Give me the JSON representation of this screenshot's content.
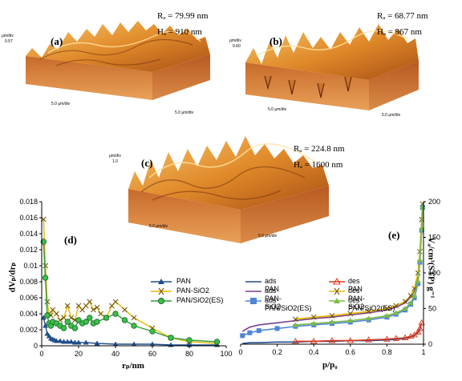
{
  "afm": {
    "a": {
      "label": "(a)",
      "ra": "Rₐ = 79.99 nm",
      "ha": "Hₐ = 910 nm",
      "zunit": "μm/div",
      "zval": "0.57",
      "xaxis": "5.0 μm/div",
      "yaxis": "5.0 μm/div"
    },
    "b": {
      "label": "(b)",
      "ra": "Rₐ = 68.77 nm",
      "ha": "Hₐ = 967 nm",
      "zunit": "μm/div",
      "zval": "0.60",
      "xaxis": "5.0 μm/div",
      "yaxis": "5.0 μm/div"
    },
    "c": {
      "label": "(c)",
      "ra": "Rₐ = 224.8 nm",
      "ha": "Hₐ = 1600 nm",
      "zunit": "μm/div",
      "zval": "1.0",
      "xaxis": "5.0 μm/div",
      "yaxis": "5.0 μm/div"
    }
  },
  "colors": {
    "pan": "#1f4e8c",
    "pansio2": "#e8b800",
    "panes": "#2e9b3a",
    "des_pan": "#d9361c",
    "ads_pansio2": "#7a3f8c",
    "ads_panes": "#4f86d6",
    "des_panes": "#7dbb45",
    "afm_light": "#f2b24a",
    "afm_dark": "#8a3d10"
  },
  "chart_data": [
    {
      "type": "line",
      "panel": "(d)",
      "ylabel": "dVₚ/drₚ",
      "xlabel": "rₚ/nm",
      "xlim": [
        0,
        100
      ],
      "ylim": [
        0,
        0.018
      ],
      "xticks": [
        "0",
        "20",
        "40",
        "60",
        "80",
        "100"
      ],
      "yticks": [
        "0",
        "0.002",
        "0.004",
        "0.006",
        "0.008",
        "0.01",
        "0.012",
        "0.014",
        "0.016",
        "0.018"
      ],
      "legend_position": "center-right",
      "series": [
        {
          "name": "PAN",
          "marker": "triangle",
          "x": [
            1,
            2,
            3,
            4,
            5,
            6,
            7,
            8,
            10,
            12,
            14,
            16,
            18,
            20,
            24,
            30,
            40,
            50,
            60,
            70,
            80,
            95
          ],
          "values": [
            0.0035,
            0.0025,
            0.0015,
            0.0012,
            0.0009,
            0.0008,
            0.0007,
            0.0006,
            0.0006,
            0.0005,
            0.0005,
            0.0005,
            0.0004,
            0.0004,
            0.0004,
            0.0003,
            0.0002,
            0.0002,
            0.0002,
            0.0001,
            0.0001,
            0.0001
          ]
        },
        {
          "name": "PAN-SiO2",
          "marker": "x",
          "x": [
            1,
            2,
            3,
            4,
            5,
            6,
            8,
            10,
            12,
            14,
            16,
            18,
            20,
            22,
            24,
            26,
            28,
            30,
            32,
            35,
            38,
            40,
            45,
            50,
            60,
            70,
            80,
            95
          ],
          "values": [
            0.0158,
            0.01,
            0.0055,
            0.004,
            0.0038,
            0.0045,
            0.004,
            0.0032,
            0.0035,
            0.005,
            0.0035,
            0.0032,
            0.005,
            0.0045,
            0.005,
            0.0055,
            0.0045,
            0.0048,
            0.004,
            0.0035,
            0.005,
            0.0055,
            0.0045,
            0.0035,
            0.0022,
            0.001,
            0.0005,
            0.0003
          ]
        },
        {
          "name": "PAN/SiO2(ES)",
          "marker": "circle",
          "x": [
            1,
            2,
            3,
            4,
            5,
            6,
            8,
            10,
            12,
            14,
            16,
            18,
            20,
            22,
            24,
            26,
            28,
            30,
            35,
            40,
            45,
            50,
            60,
            70,
            80,
            95
          ],
          "values": [
            0.013,
            0.0085,
            0.0038,
            0.0028,
            0.0025,
            0.003,
            0.0028,
            0.0025,
            0.0022,
            0.003,
            0.0025,
            0.0022,
            0.0032,
            0.0028,
            0.003,
            0.0035,
            0.0028,
            0.003,
            0.0035,
            0.004,
            0.0032,
            0.0025,
            0.0018,
            0.001,
            0.0007,
            0.0005
          ]
        }
      ]
    },
    {
      "type": "line",
      "panel": "(e)",
      "ylabel": "Vₐ/cm³(STP) g⁻¹",
      "xlabel": "p/p₀",
      "xlim": [
        0,
        1
      ],
      "ylim": [
        0,
        200
      ],
      "xticks": [
        "0",
        "0.2",
        "0.4",
        "0.6",
        "0.8",
        "1"
      ],
      "yticks": [
        "0",
        "50",
        "100",
        "150",
        "200"
      ],
      "legend_position": "top",
      "series": [
        {
          "name": "ads PAN",
          "marker": "line",
          "x": [
            0.01,
            0.05,
            0.1,
            0.2,
            0.3,
            0.4,
            0.5,
            0.6,
            0.7,
            0.8,
            0.85,
            0.9,
            0.93,
            0.95,
            0.97,
            0.98,
            0.99
          ],
          "values": [
            1,
            2,
            2,
            3,
            3,
            4,
            4,
            5,
            5,
            6,
            7,
            8,
            10,
            12,
            16,
            20,
            30
          ]
        },
        {
          "name": "des PAN",
          "marker": "triangle",
          "x": [
            0.3,
            0.4,
            0.5,
            0.6,
            0.7,
            0.8,
            0.85,
            0.9,
            0.93,
            0.95,
            0.97,
            0.98,
            0.99
          ],
          "values": [
            4,
            4,
            5,
            5,
            6,
            7,
            8,
            9,
            11,
            13,
            17,
            22,
            30
          ]
        },
        {
          "name": "ads PAN-SiO2",
          "marker": "line",
          "x": [
            0.01,
            0.05,
            0.1,
            0.2,
            0.3,
            0.4,
            0.5,
            0.6,
            0.7,
            0.8,
            0.85,
            0.9,
            0.93,
            0.95,
            0.97,
            0.98,
            0.99,
            0.995
          ],
          "values": [
            18,
            24,
            27,
            30,
            33,
            36,
            38,
            41,
            44,
            48,
            52,
            58,
            66,
            75,
            95,
            125,
            170,
            195
          ]
        },
        {
          "name": "des PAN-SiO2",
          "marker": "x",
          "x": [
            0.3,
            0.4,
            0.5,
            0.6,
            0.7,
            0.8,
            0.85,
            0.9,
            0.93,
            0.95,
            0.97,
            0.98,
            0.99,
            0.995
          ],
          "values": [
            35,
            38,
            40,
            43,
            46,
            50,
            54,
            60,
            68,
            78,
            100,
            130,
            175,
            197
          ]
        },
        {
          "name": "ads PAN/SiO2(ES)",
          "marker": "square",
          "x": [
            0.01,
            0.05,
            0.1,
            0.2,
            0.3,
            0.4,
            0.5,
            0.6,
            0.7,
            0.8,
            0.85,
            0.9,
            0.93,
            0.95,
            0.97,
            0.98,
            0.99,
            0.995
          ],
          "values": [
            12,
            16,
            19,
            22,
            25,
            27,
            29,
            31,
            34,
            38,
            42,
            48,
            56,
            65,
            85,
            115,
            160,
            192
          ]
        },
        {
          "name": "des PAN/SiO2(ES)",
          "marker": "triangle",
          "x": [
            0.3,
            0.4,
            0.5,
            0.6,
            0.7,
            0.8,
            0.85,
            0.9,
            0.93,
            0.95,
            0.97,
            0.98,
            0.99,
            0.995
          ],
          "values": [
            27,
            29,
            31,
            33,
            36,
            40,
            44,
            50,
            58,
            68,
            88,
            118,
            162,
            193
          ]
        }
      ]
    }
  ]
}
